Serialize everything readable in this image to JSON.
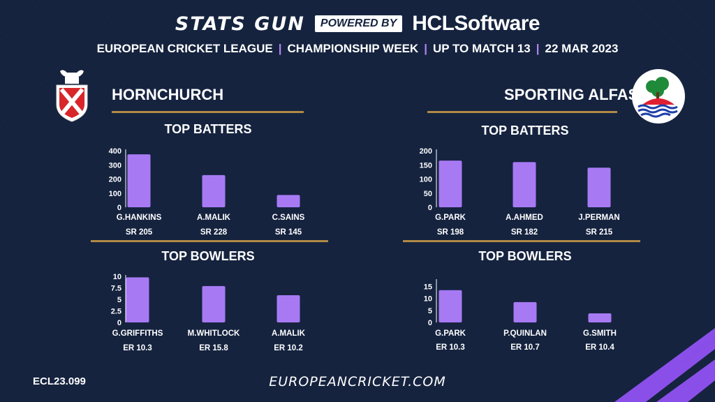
{
  "header": {
    "brand": "STATS GUN",
    "powered_by": "POWERED BY",
    "sponsor": "HCLSoftware",
    "league": "EUROPEAN CRICKET LEAGUE",
    "week": "CHAMPIONSHIP WEEK",
    "match": "UP TO MATCH  13",
    "date": "22 MAR 2023"
  },
  "teams": [
    {
      "name": "HORNCHURCH"
    },
    {
      "name": "SPORTING ALFAS"
    }
  ],
  "sections": {
    "batters": "TOP BATTERS",
    "bowlers": "TOP BOWLERS"
  },
  "footer": {
    "code": "ECL23.099",
    "url": "EUROPEANCRICKET.COM"
  },
  "colors": {
    "bar": "#a77af4",
    "background": "#15233f",
    "accent_line": "#b08a45",
    "axis": "#ffffff"
  },
  "chart_data": [
    {
      "type": "bar",
      "title": "TOP BATTERS",
      "team": "HORNCHURCH",
      "categories": [
        "G.HANKINS",
        "A.MALIK",
        "C.SAINS"
      ],
      "values": [
        375,
        228,
        87
      ],
      "sub_labels": [
        "SR 205",
        "SR 228",
        "SR 145"
      ],
      "yticks": [
        0,
        100,
        200,
        300,
        400
      ],
      "ylim": [
        0,
        400
      ]
    },
    {
      "type": "bar",
      "title": "TOP BOWLERS",
      "team": "HORNCHURCH",
      "categories": [
        "G.GRIFFITHS",
        "M.WHITLOCK",
        "A.MALIK"
      ],
      "values": [
        9.8,
        7.9,
        5.9
      ],
      "sub_labels": [
        "ER 10.3",
        "ER 15.8",
        "ER 10.2"
      ],
      "yticks": [
        0,
        2.5,
        5,
        7.5,
        10
      ],
      "ylim": [
        0,
        10
      ]
    },
    {
      "type": "bar",
      "title": "TOP BATTERS",
      "team": "SPORTING ALFAS",
      "categories": [
        "G.PARK",
        "A.AHMED",
        "J.PERMAN"
      ],
      "values": [
        165,
        160,
        140
      ],
      "sub_labels": [
        "SR 198",
        "SR 182",
        "SR 215"
      ],
      "yticks": [
        0,
        50,
        100,
        150,
        200
      ],
      "ylim": [
        0,
        200
      ]
    },
    {
      "type": "bar",
      "title": "TOP BOWLERS",
      "team": "SPORTING ALFAS",
      "categories": [
        "G.PARK",
        "P.QUINLAN",
        "G.SMITH"
      ],
      "values": [
        13.5,
        8.5,
        3.8
      ],
      "sub_labels": [
        "ER 10.3",
        "ER 10.7",
        "ER 10.4"
      ],
      "yticks": [
        0,
        5,
        10,
        15
      ],
      "ylim": [
        0,
        17.5
      ]
    }
  ]
}
